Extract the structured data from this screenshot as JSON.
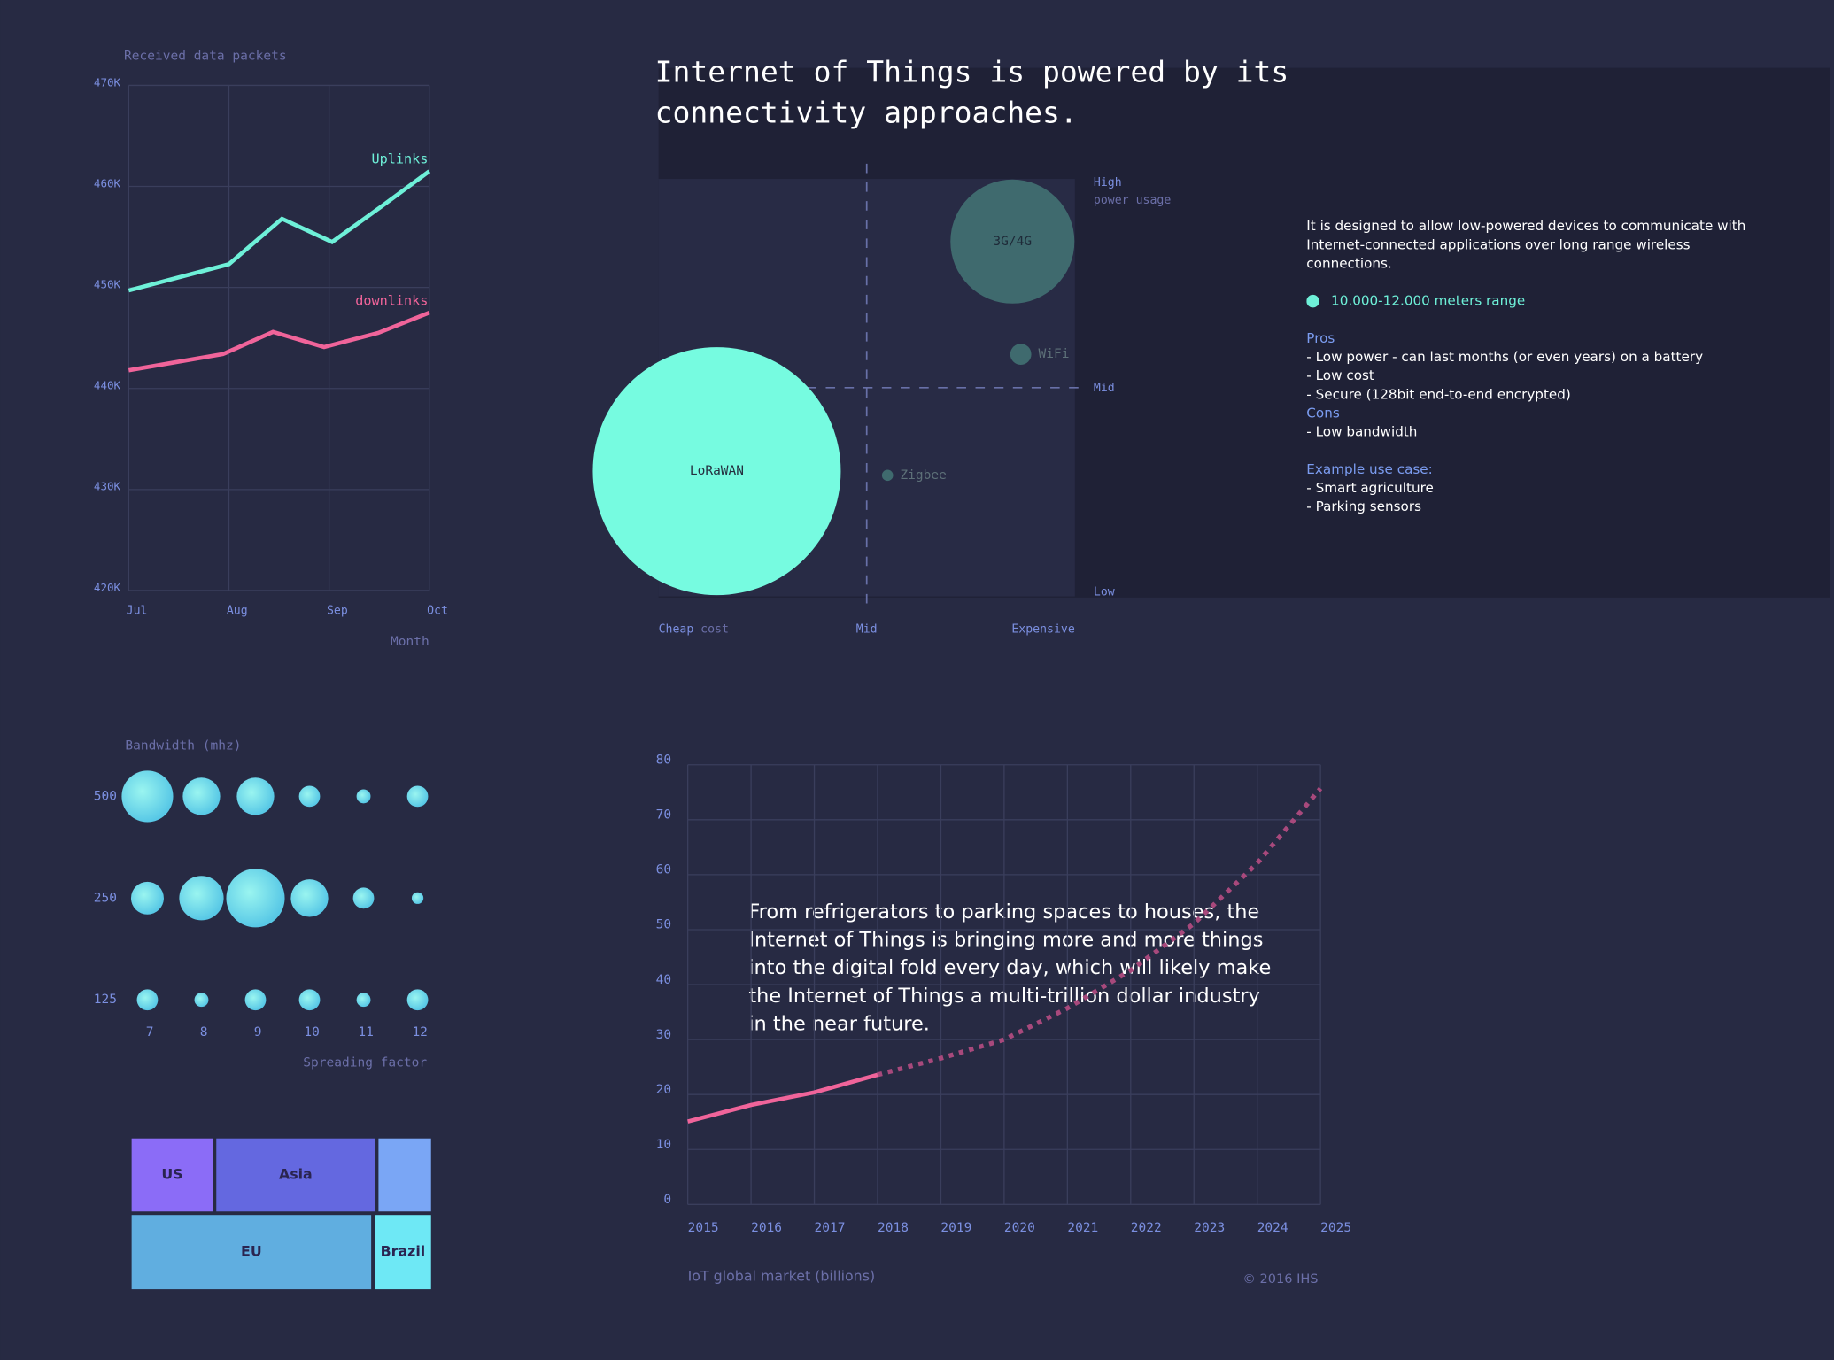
{
  "header": {
    "title": "Internet of Things is powered by its connectivity approaches."
  },
  "info": {
    "description": "It is designed to allow low-powered devices to communicate with Internet-connected applications over long range wireless connections.",
    "legend": "10.000-12.000 meters range",
    "pros_title": "Pros",
    "pros": [
      "- Low power - can last months (or even years) on a battery",
      "- Low cost",
      "- Secure (128bit end-to-end encrypted)"
    ],
    "cons_title": "Cons",
    "cons": [
      "- Low bandwidth"
    ],
    "use_case_title": "Example use case:",
    "use_cases": [
      "- Smart agriculture",
      "- Parking sensors"
    ]
  },
  "chart_data": [
    {
      "type": "line",
      "title": "Received data packets",
      "x_label": "Month",
      "xlim": [
        7,
        10
      ],
      "xticks": [
        {
          "value": 7,
          "label": "Jul"
        },
        {
          "value": 8,
          "label": "Aug"
        },
        {
          "value": 9,
          "label": "Sep"
        },
        {
          "value": 10,
          "label": "Oct"
        }
      ],
      "ylim": [
        420000,
        470000
      ],
      "yticks": [
        {
          "value": 420000,
          "label": "420K"
        },
        {
          "value": 430000,
          "label": "430K"
        },
        {
          "value": 440000,
          "label": "440K"
        },
        {
          "value": 450000,
          "label": "450K"
        },
        {
          "value": 460000,
          "label": "460K"
        },
        {
          "value": 470000,
          "label": "470K"
        }
      ],
      "grid": true,
      "series": [
        {
          "name": "Uplinks",
          "color": "#6ef0d8",
          "x": [
            7,
            8,
            8.53,
            9.03,
            9.52,
            10
          ],
          "values": [
            449700,
            452300,
            456800,
            454500,
            458000,
            461500
          ]
        },
        {
          "name": "downlinks",
          "color": "#f0649a",
          "x": [
            7,
            7.94,
            8.44,
            8.95,
            9.49,
            10
          ],
          "values": [
            441800,
            443400,
            445600,
            444100,
            445500,
            447500
          ]
        }
      ]
    },
    {
      "type": "bubble",
      "x_label": "cost",
      "y_label": "power usage",
      "xlim": [
        0,
        10
      ],
      "xticks": [
        {
          "value": 0,
          "label": "Cheap"
        },
        {
          "value": 5,
          "label": "Mid"
        },
        {
          "value": 10,
          "label": "Expensive"
        }
      ],
      "ylim": [
        0,
        10
      ],
      "yticks": [
        {
          "value": 0,
          "label": "Low"
        },
        {
          "value": 5,
          "label": "Mid"
        },
        {
          "value": 10,
          "label": "High"
        }
      ],
      "points": [
        {
          "label": "LoRaWAN",
          "x": 1.4,
          "y": 3.0,
          "size": 100,
          "color": "#76fbe0"
        },
        {
          "label": "3G/4G",
          "x": 8.5,
          "y": 8.5,
          "size": 50,
          "color": "#3f6a6e"
        },
        {
          "label": "WiFi",
          "x": 8.7,
          "y": 5.8,
          "size": 8.5,
          "color": "#3f6a6e"
        },
        {
          "label": "Zigbee",
          "x": 5.5,
          "y": 2.9,
          "size": 4.5,
          "color": "#3f6a6e"
        }
      ]
    },
    {
      "type": "bubble-grid",
      "title": "Bandwidth (mhz)",
      "x_label": "Spreading factor",
      "categories": [
        7,
        8,
        9,
        10,
        11,
        12
      ],
      "y_categories": [
        500,
        250,
        125
      ],
      "values": [
        [
          22,
          16,
          16,
          9,
          6,
          9
        ],
        [
          14,
          19,
          25,
          16,
          9,
          5
        ],
        [
          9,
          6,
          9,
          9,
          6,
          9
        ]
      ]
    },
    {
      "type": "treemap",
      "items": [
        {
          "name": "US",
          "value": 4544,
          "color": "#8b6cf7"
        },
        {
          "name": "Asia",
          "value": 8704,
          "color": "#6468e0"
        },
        {
          "name": null,
          "value": 3008,
          "color": "#7aa6f5"
        },
        {
          "name": "EU",
          "value": 13248,
          "color": "#60aee0"
        },
        {
          "name": "Brazil",
          "value": 3264,
          "color": "#6ee8f5"
        }
      ]
    },
    {
      "type": "line",
      "x_label": "IoT global market (billions)",
      "source": "© 2016 IHS",
      "annotation": "From refrigerators to parking spaces to houses, the Internet of Things is bringing more and more things into the digital fold every day, which will likely make the Internet of Things a multi-trillion dollar industry in the near future.",
      "x": [
        2015,
        2016,
        2017,
        2018,
        2019,
        2020,
        2021,
        2022,
        2023,
        2024,
        2025
      ],
      "xlim": [
        2015,
        2025
      ],
      "xticks": [
        2015,
        2016,
        2017,
        2018,
        2019,
        2020,
        2021,
        2022,
        2023,
        2024,
        2025
      ],
      "ylim": [
        0,
        80
      ],
      "yticks": [
        0,
        10,
        20,
        30,
        40,
        50,
        60,
        70,
        80
      ],
      "grid": true,
      "series": [
        {
          "color": "#f0649a",
          "dashed": false,
          "values": [
            15.1,
            18.1,
            20.4,
            23.6,
            null,
            null,
            null,
            null,
            null,
            null,
            null
          ]
        },
        {
          "color": "#a8497c",
          "dashed": true,
          "values": [
            null,
            null,
            null,
            23.6,
            26.6,
            30.0,
            35.7,
            42.6,
            51.1,
            62.1,
            75.7
          ]
        }
      ]
    }
  ]
}
